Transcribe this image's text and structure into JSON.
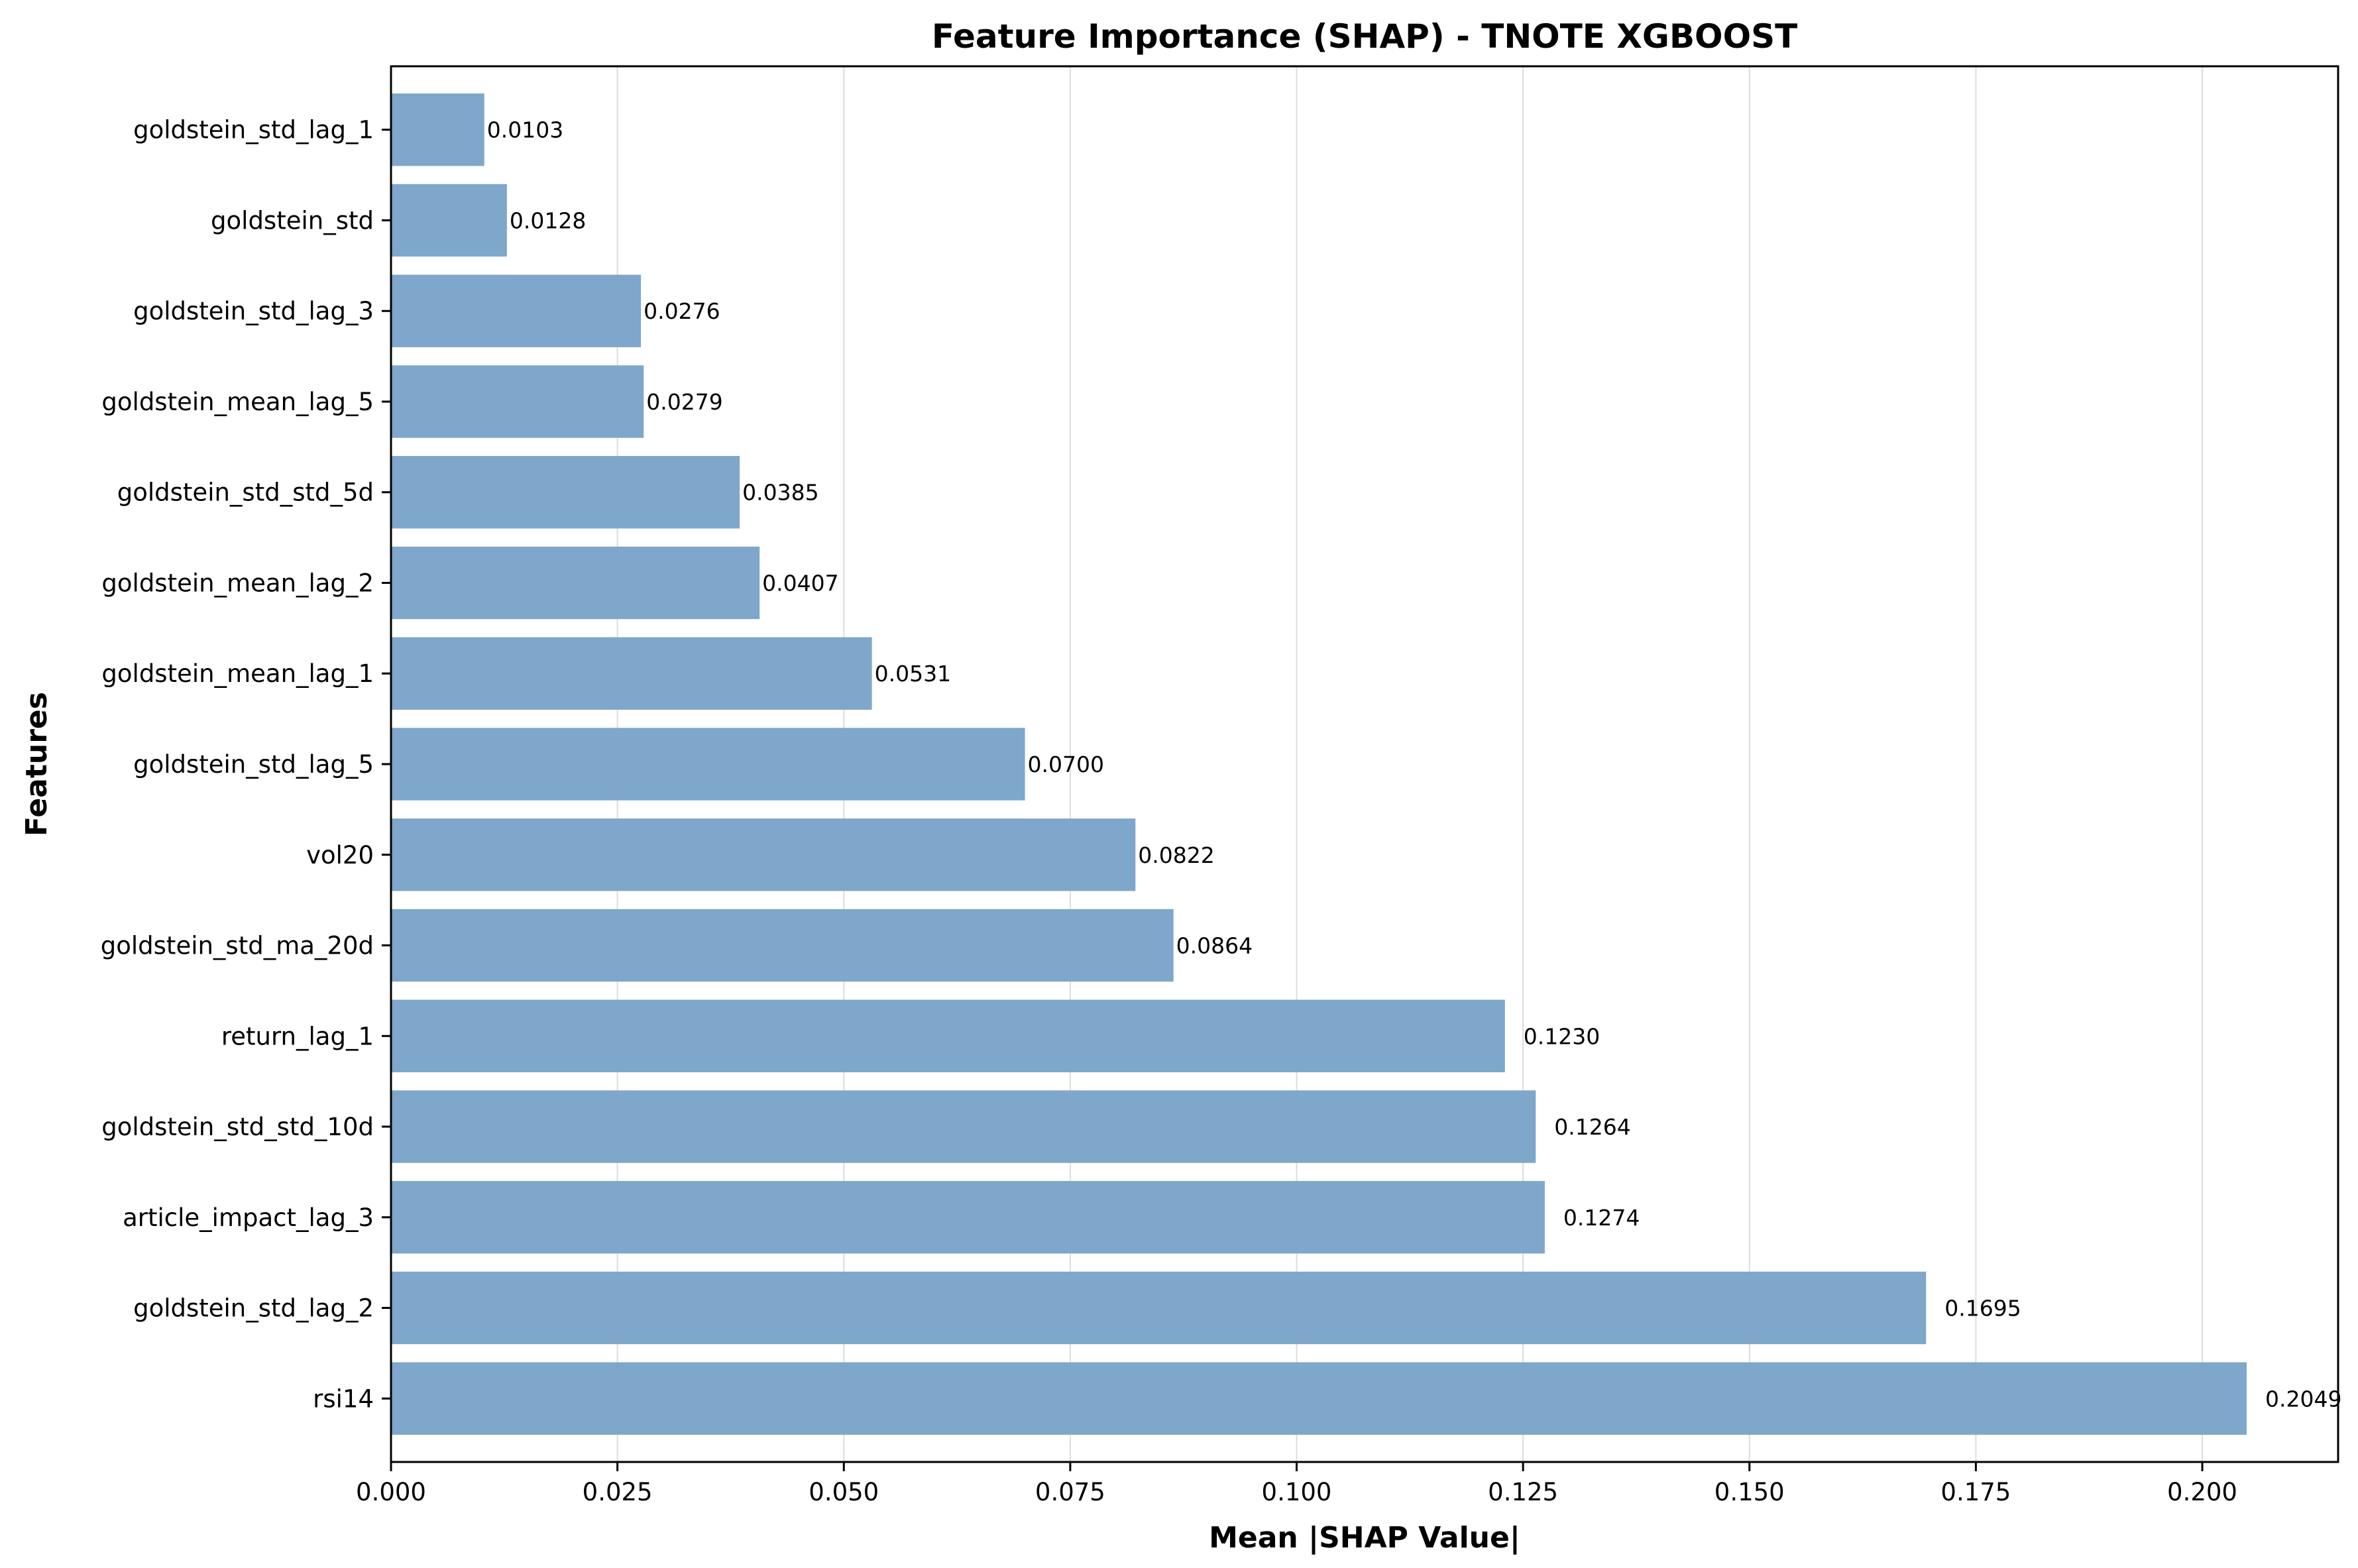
{
  "chart_data": {
    "type": "bar",
    "orientation": "horizontal",
    "title": "Feature Importance (SHAP) - TNOTE XGBOOST",
    "xlabel": "Mean |SHAP Value|",
    "ylabel": "Features",
    "xlim": [
      0,
      0.215
    ],
    "x_ticks": [
      "0.000",
      "0.025",
      "0.050",
      "0.075",
      "0.100",
      "0.125",
      "0.150",
      "0.175",
      "0.200"
    ],
    "x_tick_values": [
      0,
      0.025,
      0.05,
      0.075,
      0.1,
      0.125,
      0.15,
      0.175,
      0.2
    ],
    "grid": "vertical",
    "bar_color": "#7ea7cb",
    "categories": [
      "goldstein_std_lag_1",
      "goldstein_std",
      "goldstein_std_lag_3",
      "goldstein_mean_lag_5",
      "goldstein_std_std_5d",
      "goldstein_mean_lag_2",
      "goldstein_mean_lag_1",
      "goldstein_std_lag_5",
      "vol20",
      "goldstein_std_ma_20d",
      "return_lag_1",
      "goldstein_std_std_10d",
      "article_impact_lag_3",
      "goldstein_std_lag_2",
      "rsi14"
    ],
    "values": [
      0.0103,
      0.0128,
      0.0276,
      0.0279,
      0.0385,
      0.0407,
      0.0531,
      0.07,
      0.0822,
      0.0864,
      0.123,
      0.1264,
      0.1274,
      0.1695,
      0.2049
    ],
    "value_labels": [
      "0.0103",
      "0.0128",
      "0.0276",
      "0.0279",
      "0.0385",
      "0.0407",
      "0.0531",
      "0.0700",
      "0.0822",
      "0.0864",
      "0.1230",
      "0.1264",
      "0.1274",
      "0.1695",
      "0.2049"
    ]
  }
}
